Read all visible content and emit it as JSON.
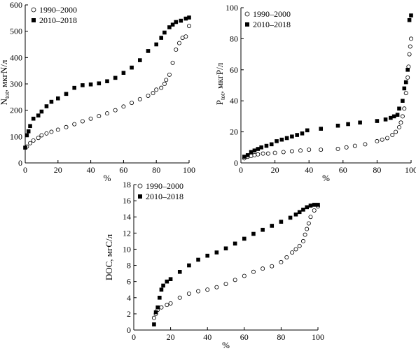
{
  "chart_data": [
    {
      "id": "ntot",
      "type": "scatter",
      "xlabel": "%",
      "ylabel": "N_tot, мкгN/л",
      "ylabel_main": "N",
      "ylabel_sub": "tot",
      "ylabel_rest": ", мкгN/л",
      "xlim": [
        0,
        100
      ],
      "ylim": [
        0,
        600
      ],
      "xticks": [
        0,
        20,
        40,
        60,
        80,
        100
      ],
      "yticks": [
        0,
        100,
        200,
        300,
        400,
        500,
        600
      ],
      "legend_position": "top-left",
      "series": [
        {
          "name": "1990–2000",
          "marker": "open-circle",
          "points": [
            [
              1,
              62
            ],
            [
              3,
              75
            ],
            [
              5,
              85
            ],
            [
              8,
              95
            ],
            [
              10,
              105
            ],
            [
              13,
              112
            ],
            [
              16,
              118
            ],
            [
              20,
              126
            ],
            [
              25,
              136
            ],
            [
              30,
              147
            ],
            [
              35,
              158
            ],
            [
              40,
              168
            ],
            [
              45,
              178
            ],
            [
              50,
              188
            ],
            [
              55,
              200
            ],
            [
              60,
              214
            ],
            [
              65,
              228
            ],
            [
              70,
              242
            ],
            [
              75,
              255
            ],
            [
              78,
              265
            ],
            [
              80,
              278
            ],
            [
              83,
              285
            ],
            [
              85,
              300
            ],
            [
              86,
              315
            ],
            [
              88,
              335
            ],
            [
              90,
              380
            ],
            [
              92,
              430
            ],
            [
              94,
              455
            ],
            [
              96,
              475
            ],
            [
              98,
              480
            ],
            [
              100,
              520
            ]
          ]
        },
        {
          "name": "2010–2018",
          "marker": "filled-square",
          "points": [
            [
              0,
              58
            ],
            [
              1,
              105
            ],
            [
              2,
              120
            ],
            [
              3,
              140
            ],
            [
              5,
              168
            ],
            [
              8,
              180
            ],
            [
              10,
              195
            ],
            [
              13,
              215
            ],
            [
              16,
              232
            ],
            [
              20,
              245
            ],
            [
              25,
              262
            ],
            [
              30,
              285
            ],
            [
              35,
              295
            ],
            [
              40,
              298
            ],
            [
              45,
              302
            ],
            [
              50,
              310
            ],
            [
              55,
              323
            ],
            [
              60,
              342
            ],
            [
              65,
              362
            ],
            [
              70,
              390
            ],
            [
              75,
              425
            ],
            [
              80,
              450
            ],
            [
              83,
              475
            ],
            [
              85,
              495
            ],
            [
              88,
              515
            ],
            [
              90,
              525
            ],
            [
              92,
              535
            ],
            [
              95,
              540
            ],
            [
              98,
              548
            ],
            [
              100,
              552
            ]
          ]
        }
      ]
    },
    {
      "id": "ptot",
      "type": "scatter",
      "xlabel": "%",
      "ylabel": "P_tot, мкгP/л",
      "ylabel_main": "P",
      "ylabel_sub": "tot",
      "ylabel_rest": ", мкгP/л",
      "xlim": [
        0,
        100
      ],
      "ylim": [
        0,
        100
      ],
      "xticks": [
        0,
        20,
        40,
        60,
        80,
        100
      ],
      "yticks": [
        0,
        20,
        40,
        60,
        80,
        100
      ],
      "legend_position": "top-left",
      "series": [
        {
          "name": "1990–2000",
          "marker": "open-circle",
          "points": [
            [
              2,
              3
            ],
            [
              4,
              4
            ],
            [
              6,
              4.5
            ],
            [
              8,
              5
            ],
            [
              10,
              5.5
            ],
            [
              13,
              6
            ],
            [
              16,
              6
            ],
            [
              20,
              6.5
            ],
            [
              25,
              7
            ],
            [
              30,
              7.5
            ],
            [
              35,
              8
            ],
            [
              40,
              8.5
            ],
            [
              47,
              8.5
            ],
            [
              57,
              9
            ],
            [
              62,
              10
            ],
            [
              67,
              11
            ],
            [
              73,
              12
            ],
            [
              80,
              14
            ],
            [
              83,
              15
            ],
            [
              86,
              16
            ],
            [
              89,
              18
            ],
            [
              91,
              20
            ],
            [
              93,
              23
            ],
            [
              94,
              26
            ],
            [
              95,
              30
            ],
            [
              96,
              35
            ],
            [
              97,
              45
            ],
            [
              98,
              55
            ],
            [
              98.5,
              62
            ],
            [
              99,
              70
            ],
            [
              99.5,
              75
            ],
            [
              100,
              80
            ]
          ]
        },
        {
          "name": "2010–2018",
          "marker": "filled-square",
          "points": [
            [
              2,
              4
            ],
            [
              4,
              5
            ],
            [
              6,
              7
            ],
            [
              8,
              8
            ],
            [
              10,
              9
            ],
            [
              12,
              10
            ],
            [
              15,
              11
            ],
            [
              18,
              12
            ],
            [
              21,
              14
            ],
            [
              24,
              15
            ],
            [
              27,
              16
            ],
            [
              30,
              17
            ],
            [
              33,
              18
            ],
            [
              36,
              19
            ],
            [
              39,
              21
            ],
            [
              47,
              22
            ],
            [
              57,
              24
            ],
            [
              63,
              25
            ],
            [
              70,
              26
            ],
            [
              80,
              27
            ],
            [
              85,
              28
            ],
            [
              88,
              29
            ],
            [
              90,
              30
            ],
            [
              92,
              31
            ],
            [
              93,
              35
            ],
            [
              95,
              40
            ],
            [
              96,
              48
            ],
            [
              97,
              52
            ],
            [
              98,
              60
            ],
            [
              99,
              92
            ],
            [
              100,
              95
            ]
          ]
        }
      ]
    },
    {
      "id": "doc",
      "type": "scatter",
      "xlabel": "%",
      "ylabel": "DOC, мгС/л",
      "xlim": [
        0,
        100
      ],
      "ylim": [
        0,
        18
      ],
      "xticks": [
        0,
        20,
        40,
        60,
        80,
        100
      ],
      "yticks": [
        0,
        2,
        4,
        6,
        8,
        10,
        12,
        14,
        16,
        18
      ],
      "legend_position": "top-left",
      "series": [
        {
          "name": "1990–2000",
          "marker": "open-circle",
          "points": [
            [
              11,
              1.5
            ],
            [
              12,
              2
            ],
            [
              13,
              2.5
            ],
            [
              15,
              2.8
            ],
            [
              18,
              3.1
            ],
            [
              20,
              3.3
            ],
            [
              25,
              4.0
            ],
            [
              30,
              4.5
            ],
            [
              35,
              4.8
            ],
            [
              40,
              5.0
            ],
            [
              45,
              5.3
            ],
            [
              50,
              5.7
            ],
            [
              55,
              6.2
            ],
            [
              60,
              6.7
            ],
            [
              65,
              7.2
            ],
            [
              70,
              7.6
            ],
            [
              75,
              7.9
            ],
            [
              80,
              8.4
            ],
            [
              83,
              9.0
            ],
            [
              86,
              9.6
            ],
            [
              88,
              10.0
            ],
            [
              90,
              10.4
            ],
            [
              92,
              11.0
            ],
            [
              93,
              11.8
            ],
            [
              94,
              12.5
            ],
            [
              95,
              13.2
            ],
            [
              96,
              14.0
            ],
            [
              98,
              14.8
            ],
            [
              100,
              15.3
            ]
          ]
        },
        {
          "name": "2010–2018",
          "marker": "filled-square",
          "points": [
            [
              11,
              0.7
            ],
            [
              12,
              2.2
            ],
            [
              13,
              2.8
            ],
            [
              14,
              4.0
            ],
            [
              15,
              5.0
            ],
            [
              16,
              5.5
            ],
            [
              18,
              6.0
            ],
            [
              20,
              6.3
            ],
            [
              25,
              7.2
            ],
            [
              30,
              8.0
            ],
            [
              35,
              8.7
            ],
            [
              40,
              9.2
            ],
            [
              45,
              9.6
            ],
            [
              50,
              10.1
            ],
            [
              55,
              10.7
            ],
            [
              60,
              11.3
            ],
            [
              65,
              11.9
            ],
            [
              70,
              12.4
            ],
            [
              75,
              12.9
            ],
            [
              80,
              13.4
            ],
            [
              85,
              13.9
            ],
            [
              88,
              14.3
            ],
            [
              90,
              14.6
            ],
            [
              92,
              14.9
            ],
            [
              94,
              15.2
            ],
            [
              96,
              15.4
            ],
            [
              98,
              15.5
            ],
            [
              100,
              15.5
            ]
          ]
        }
      ]
    }
  ]
}
